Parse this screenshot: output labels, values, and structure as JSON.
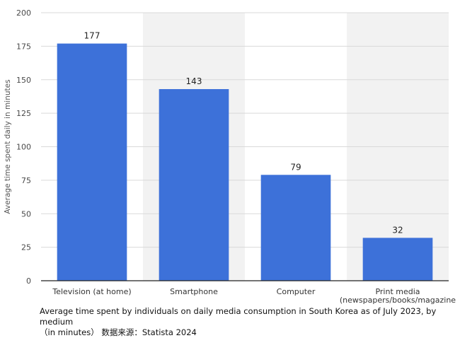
{
  "caption": {
    "line1": "Average time spent by individuals on daily media consumption in South Korea as of July 2023, by medium",
    "line2": "（in minutes） 数据来源：Statista 2024"
  },
  "chart_data": {
    "type": "bar",
    "categories": [
      "Television (at home)",
      "Smartphone",
      "Computer",
      "Print media\n(newspapers/books/magazine"
    ],
    "values": [
      177,
      143,
      79,
      32
    ],
    "data_labels": [
      "177",
      "143",
      "79",
      "32"
    ],
    "ylabel": "Average time spent daily in minutes",
    "xlabel": "",
    "ylim": [
      0,
      200
    ],
    "yticks": [
      0,
      25,
      50,
      75,
      100,
      125,
      150,
      175,
      200
    ],
    "grid": true,
    "colors": {
      "bar": "#3d71d9",
      "band": "#f2f2f2",
      "grid": "#d9d9d9",
      "axis": "#222222"
    }
  }
}
